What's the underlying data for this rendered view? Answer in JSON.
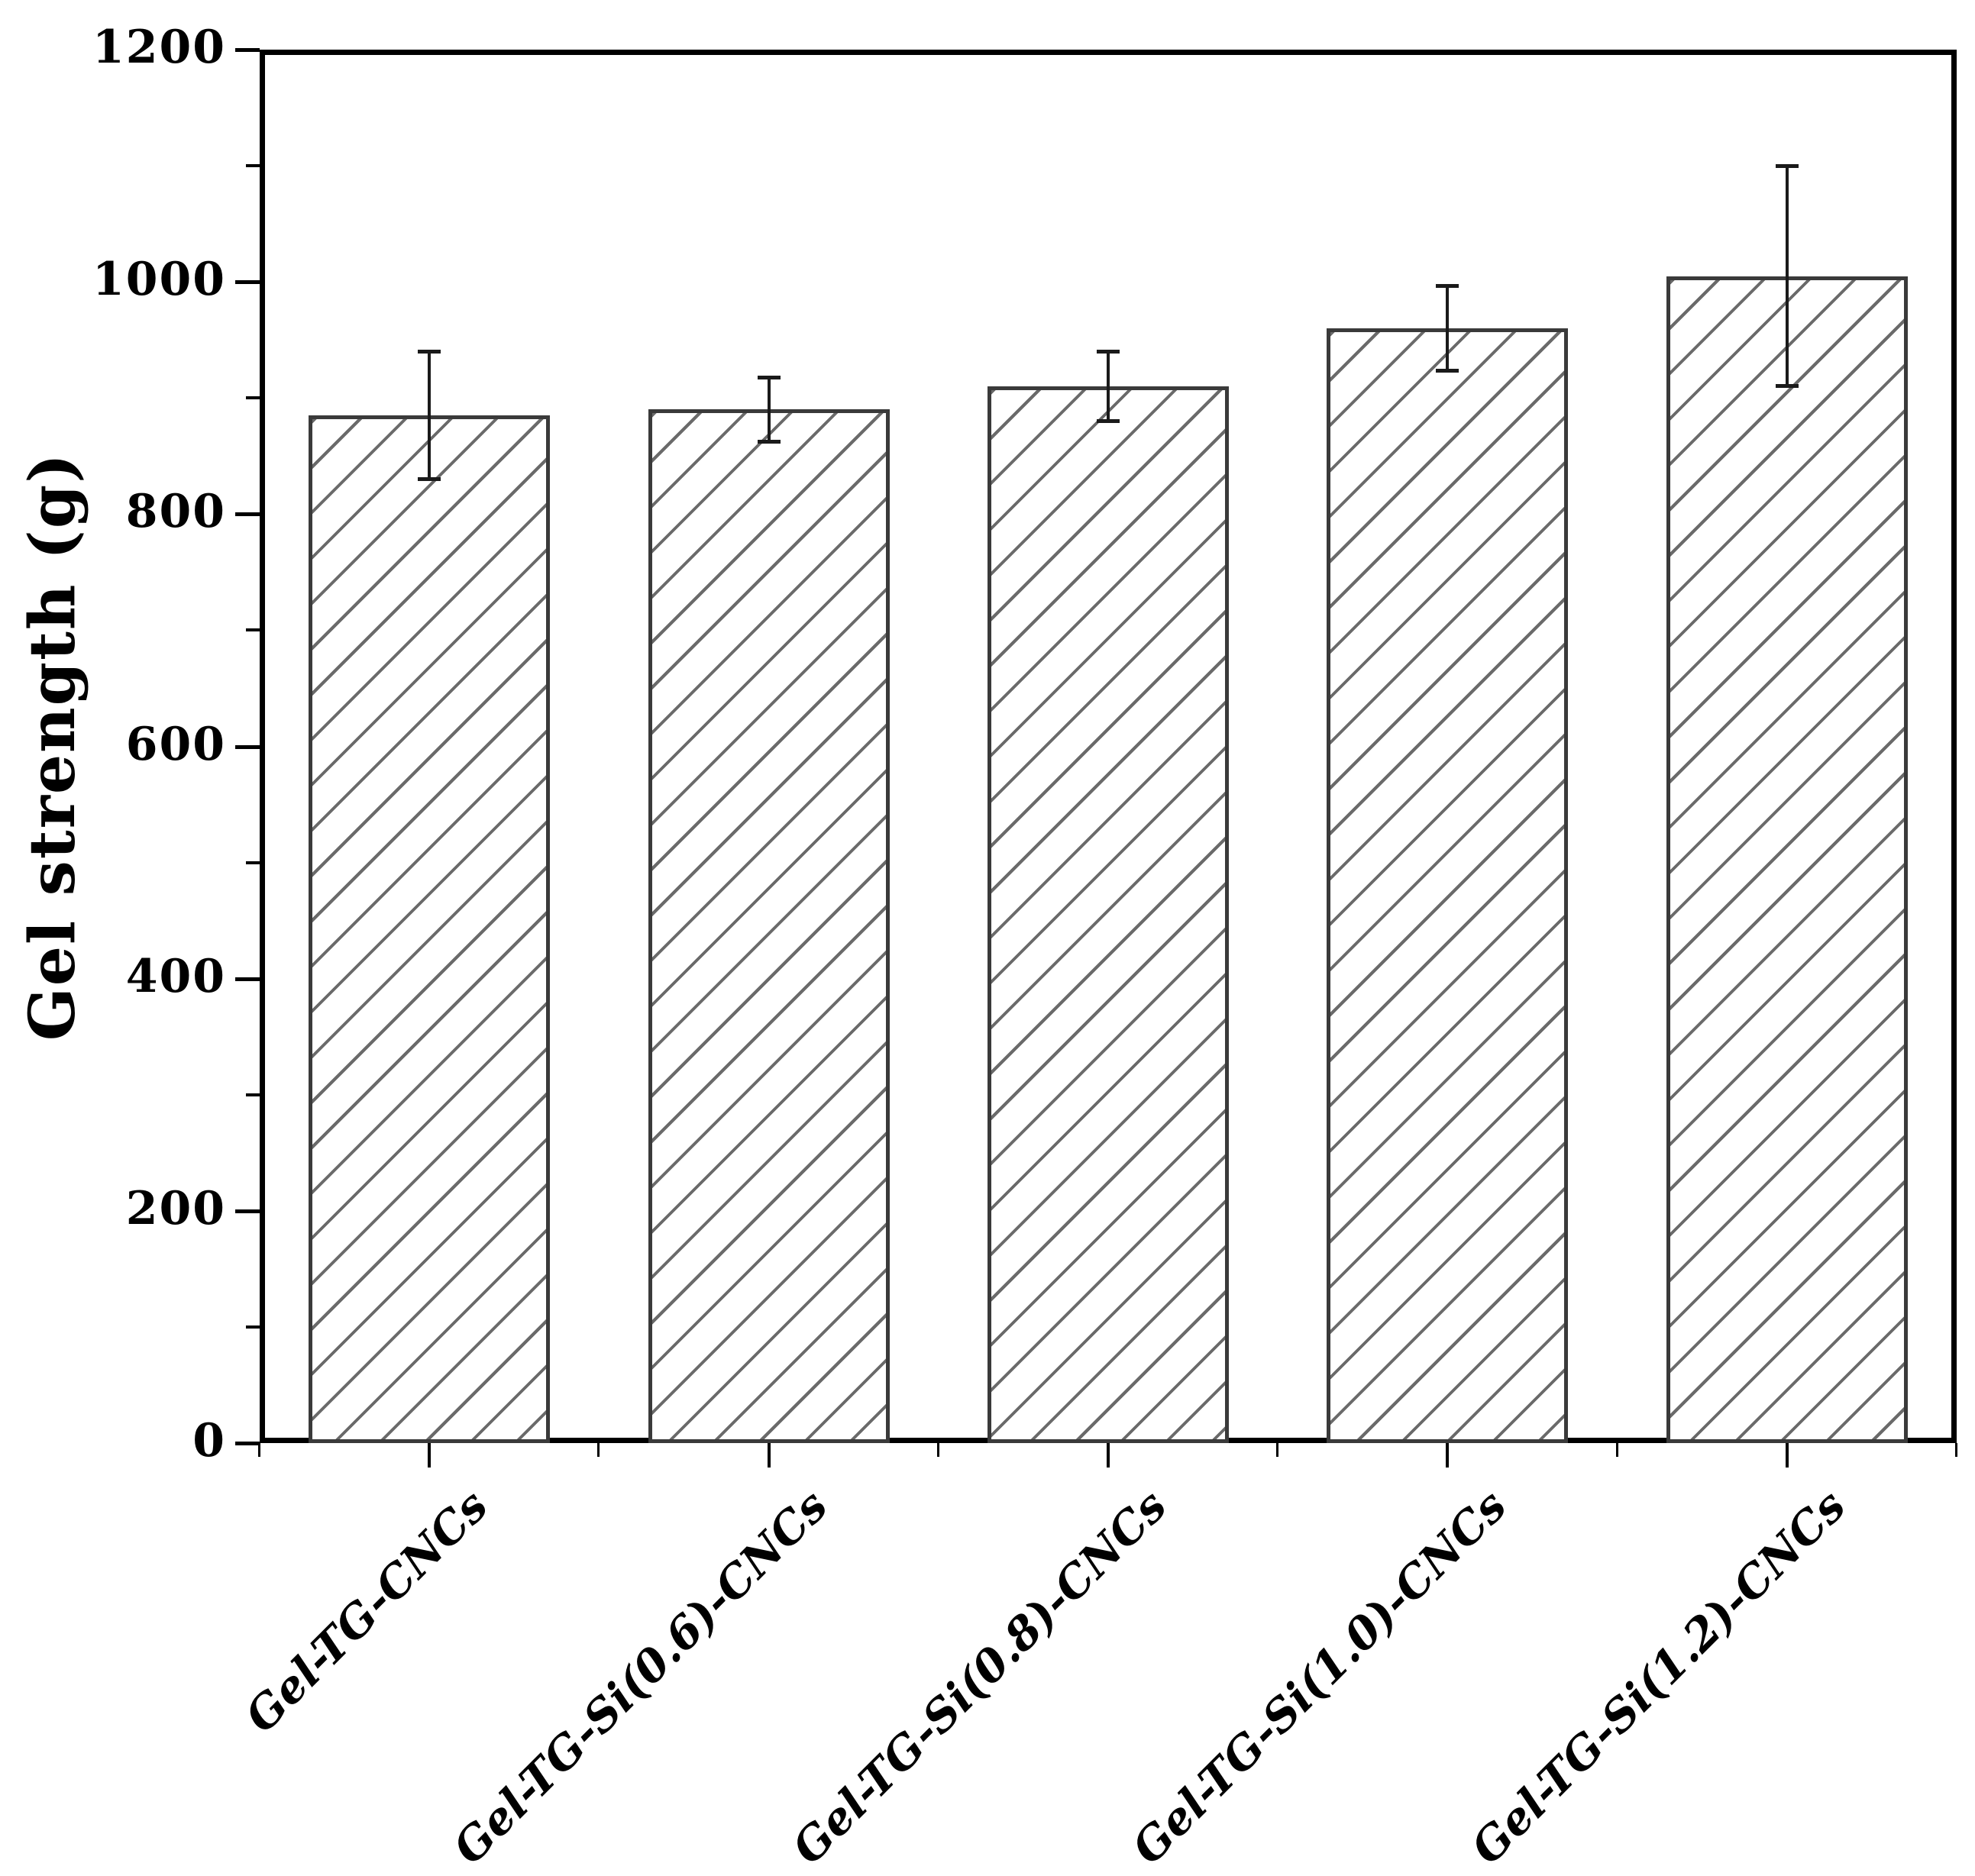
{
  "figure": {
    "background": "#ffffff"
  },
  "chart_data": {
    "type": "bar",
    "title": "",
    "xlabel": "",
    "ylabel": "Gel strength (g)",
    "ylim": [
      0,
      1200
    ],
    "ytick_step": 200,
    "yminor_step": 100,
    "ytick_labels": [
      "0",
      "200",
      "400",
      "600",
      "800",
      "1000",
      "1200"
    ],
    "categories": [
      "Gel-TG-CNCs",
      "Gel-TG-Si(0.6)-CNCs",
      "Gel-TG-Si(0.8)-CNCs",
      "Gel-TG-Si(1.0)-CNCs",
      "Gel-TG-Si(1.2)-CNCs"
    ],
    "series": [
      {
        "name": "Gel strength",
        "values": [
          885,
          890,
          910,
          960,
          1005
        ],
        "errors": [
          55,
          28,
          30,
          37,
          95
        ]
      }
    ],
    "grid": false,
    "legend_position": "none",
    "bar_style": {
      "fill": "#ffffff",
      "hatch": "forward-diagonal",
      "hatch_color": "#505050",
      "border_color": "#3a3a3a"
    },
    "colors": {
      "axis": "#000000",
      "error_bar": "#1a1a1a",
      "text": "#000000"
    }
  }
}
